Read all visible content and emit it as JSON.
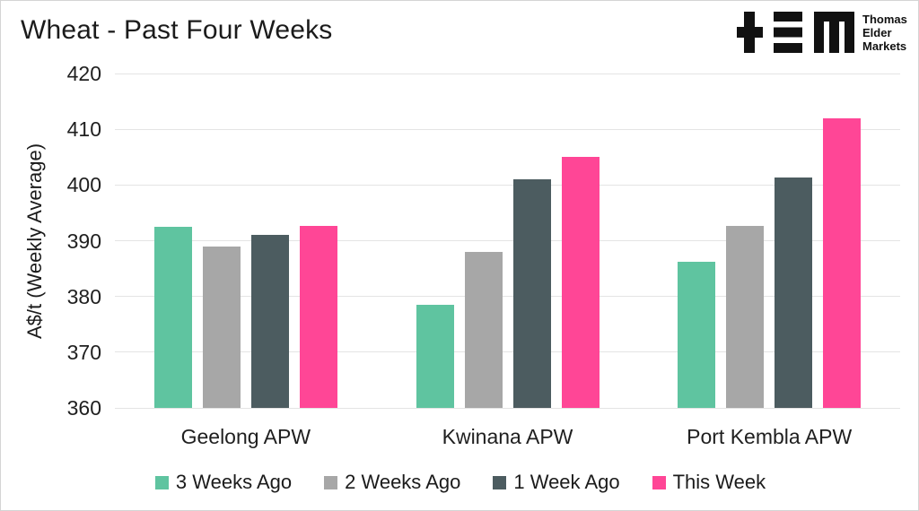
{
  "title": "Wheat - Past Four Weeks",
  "logo": {
    "mark": "tem-plus-equals-m-monogram",
    "lines": [
      "Thomas",
      "Elder",
      "Markets"
    ],
    "color": "#111111"
  },
  "chart_data": {
    "type": "bar",
    "title": "Wheat - Past Four Weeks",
    "categories": [
      "Geelong APW",
      "Kwinana APW",
      "Port Kembla APW"
    ],
    "series": [
      {
        "name": "3 Weeks Ago",
        "color": "#5FC4A0",
        "values": [
          392.5,
          378.5,
          386.3
        ]
      },
      {
        "name": "2 Weeks Ago",
        "color": "#A7A7A7",
        "values": [
          388.9,
          388.0,
          392.7
        ]
      },
      {
        "name": "1 Week Ago",
        "color": "#4C5C60",
        "values": [
          391.1,
          401.0,
          401.3
        ]
      },
      {
        "name": "This Week",
        "color": "#FF4696",
        "values": [
          392.7,
          405.0,
          412.0
        ]
      }
    ],
    "xlabel": "",
    "ylabel": "A$/t (Weekly Average)",
    "ylim": [
      360,
      420
    ],
    "yticks": [
      360,
      370,
      380,
      390,
      400,
      410,
      420
    ],
    "grid": "horizontal",
    "legend_position": "bottom"
  },
  "colors": {
    "background": "#ffffff",
    "border": "#d4d4d4",
    "gridline": "#e4e4e4",
    "text": "#1b1b1b"
  }
}
